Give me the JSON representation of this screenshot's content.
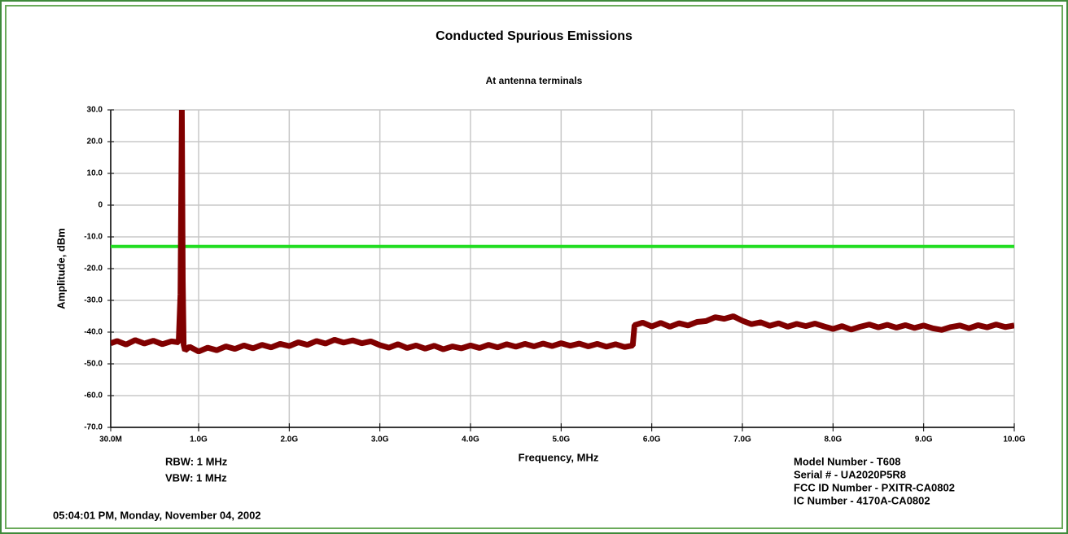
{
  "chart_data": {
    "type": "line",
    "title": "Conducted Spurious Emissions",
    "subtitle": "At antenna terminals",
    "x_label": "Frequency, MHz",
    "y_label": "Amplitude, dBm",
    "xlim": [
      30,
      10000
    ],
    "ylim": [
      -70,
      30
    ],
    "xticks": [
      {
        "value": 30,
        "label": "30.0M"
      },
      {
        "value": 1000,
        "label": "1.0G"
      },
      {
        "value": 2000,
        "label": "2.0G"
      },
      {
        "value": 3000,
        "label": "3.0G"
      },
      {
        "value": 4000,
        "label": "4.0G"
      },
      {
        "value": 5000,
        "label": "5.0G"
      },
      {
        "value": 6000,
        "label": "6.0G"
      },
      {
        "value": 7000,
        "label": "7.0G"
      },
      {
        "value": 8000,
        "label": "8.0G"
      },
      {
        "value": 9000,
        "label": "9.0G"
      },
      {
        "value": 10000,
        "label": "10.0G"
      }
    ],
    "yticks": [
      {
        "value": 30,
        "label": "30.0"
      },
      {
        "value": 20,
        "label": "20.0"
      },
      {
        "value": 10,
        "label": "10.0"
      },
      0,
      {
        "value": -10,
        "label": "-10.0"
      },
      {
        "value": -20,
        "label": "-20.0"
      },
      {
        "value": -30,
        "label": "-30.0"
      },
      {
        "value": -40,
        "label": "-40.0"
      },
      {
        "value": -50,
        "label": "-50.0"
      },
      {
        "value": -60,
        "label": "-60.0"
      },
      {
        "value": -70,
        "label": "-70.0"
      }
    ],
    "grid": true,
    "x": [
      30,
      100,
      200,
      300,
      400,
      500,
      600,
      700,
      780,
      800,
      815,
      825,
      835,
      850,
      900,
      1000,
      1100,
      1200,
      1300,
      1400,
      1500,
      1600,
      1700,
      1800,
      1900,
      2000,
      2100,
      2200,
      2300,
      2400,
      2500,
      2600,
      2700,
      2800,
      2900,
      3000,
      3100,
      3200,
      3300,
      3400,
      3500,
      3600,
      3700,
      3800,
      3900,
      4000,
      4100,
      4200,
      4300,
      4400,
      4500,
      4600,
      4700,
      4800,
      4900,
      5000,
      5100,
      5200,
      5300,
      5400,
      5500,
      5600,
      5700,
      5790,
      5810,
      5900,
      6000,
      6100,
      6200,
      6300,
      6400,
      6500,
      6600,
      6700,
      6800,
      6900,
      7000,
      7100,
      7200,
      7300,
      7400,
      7500,
      7600,
      7700,
      7800,
      7900,
      8000,
      8100,
      8200,
      8300,
      8400,
      8500,
      8600,
      8700,
      8800,
      8900,
      9000,
      9100,
      9200,
      9300,
      9400,
      9500,
      9600,
      9700,
      9800,
      9900,
      10000
    ],
    "series": [
      {
        "color": "#800000",
        "values": [
          -43.5,
          -42.8,
          -43.9,
          -42.5,
          -43.6,
          -42.7,
          -43.8,
          -42.9,
          -43.2,
          -28,
          30,
          -24,
          -44,
          -45.8,
          -44.6,
          -46.1,
          -44.9,
          -45.7,
          -44.5,
          -45.3,
          -44.2,
          -45.1,
          -44,
          -44.8,
          -43.7,
          -44.4,
          -43.2,
          -44,
          -42.8,
          -43.6,
          -42.4,
          -43.3,
          -42.6,
          -43.5,
          -42.9,
          -44.1,
          -44.9,
          -43.8,
          -45,
          -44.2,
          -45.2,
          -44.3,
          -45.4,
          -44.5,
          -45.1,
          -44.2,
          -45,
          -44,
          -44.8,
          -43.8,
          -44.6,
          -43.7,
          -44.5,
          -43.6,
          -44.4,
          -43.5,
          -44.3,
          -43.6,
          -44.5,
          -43.7,
          -44.6,
          -43.8,
          -44.7,
          -44.2,
          -37.8,
          -37,
          -38.2,
          -37.1,
          -38.3,
          -37.2,
          -37.9,
          -36.8,
          -36.5,
          -35.3,
          -35.8,
          -35,
          -36.4,
          -37.5,
          -36.9,
          -38,
          -37.2,
          -38.3,
          -37.4,
          -38.1,
          -37.3,
          -38.2,
          -39,
          -38.1,
          -39.2,
          -38.3,
          -37.6,
          -38.5,
          -37.7,
          -38.6,
          -37.8,
          -38.7,
          -37.9,
          -38.8,
          -39.3,
          -38.4,
          -37.9,
          -38.8,
          -37.8,
          -38.5,
          -37.6,
          -38.4,
          -37.9
        ]
      }
    ],
    "limit": {
      "value": -13,
      "color": "#22dd22"
    },
    "notes": [
      "RBW: 1 MHz",
      "VBW: 1 MHz"
    ],
    "device_info": [
      "Model Number - T608",
      "Serial # - UA2020P5R8",
      "FCC ID Number - PXITR-CA0802",
      "IC Number - 4170A-CA0802"
    ],
    "timestamp": "05:04:01 PM, Monday, November 04, 2002"
  }
}
